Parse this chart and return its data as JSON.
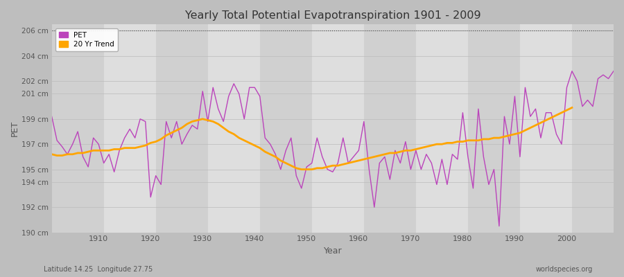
{
  "title": "Yearly Total Potential Evapotranspiration 1901 - 2009",
  "xlabel": "Year",
  "ylabel": "PET",
  "lat_lon_label": "Latitude 14.25  Longitude 27.75",
  "source_label": "worldspecies.org",
  "pet_color": "#BB44BB",
  "trend_color": "#FFA500",
  "fig_bg_color": "#BEBEBE",
  "plot_bg_color": "#D8D8D8",
  "band_colors": [
    "#D0D0D0",
    "#DEDEDE"
  ],
  "ylim": [
    190,
    206.5
  ],
  "yticks": [
    190,
    192,
    194,
    195,
    197,
    199,
    201,
    202,
    204,
    206
  ],
  "ytick_labels": [
    "190 cm",
    "192 cm",
    "194 cm",
    "195 cm",
    "197 cm",
    "199 cm",
    "201 cm",
    "202 cm",
    "204 cm",
    "206 cm"
  ],
  "xticks": [
    1910,
    1920,
    1930,
    1940,
    1950,
    1960,
    1970,
    1980,
    1990,
    2000
  ],
  "years": [
    1901,
    1902,
    1903,
    1904,
    1905,
    1906,
    1907,
    1908,
    1909,
    1910,
    1911,
    1912,
    1913,
    1914,
    1915,
    1916,
    1917,
    1918,
    1919,
    1920,
    1921,
    1922,
    1923,
    1924,
    1925,
    1926,
    1927,
    1928,
    1929,
    1930,
    1931,
    1932,
    1933,
    1934,
    1935,
    1936,
    1937,
    1938,
    1939,
    1940,
    1941,
    1942,
    1943,
    1944,
    1945,
    1946,
    1947,
    1948,
    1949,
    1950,
    1951,
    1952,
    1953,
    1954,
    1955,
    1956,
    1957,
    1958,
    1959,
    1960,
    1961,
    1962,
    1963,
    1964,
    1965,
    1966,
    1967,
    1968,
    1969,
    1970,
    1971,
    1972,
    1973,
    1974,
    1975,
    1976,
    1977,
    1978,
    1979,
    1980,
    1981,
    1982,
    1983,
    1984,
    1985,
    1986,
    1987,
    1988,
    1989,
    1990,
    1991,
    1992,
    1993,
    1994,
    1995,
    1996,
    1997,
    1998,
    1999,
    2000,
    2001,
    2002,
    2003,
    2004,
    2005,
    2006,
    2007,
    2008,
    2009
  ],
  "pet_values": [
    199.2,
    197.3,
    196.8,
    196.2,
    197.0,
    198.0,
    196.0,
    195.2,
    197.5,
    197.0,
    195.5,
    196.2,
    194.8,
    196.5,
    197.5,
    198.2,
    197.5,
    199.0,
    198.8,
    192.8,
    194.5,
    193.8,
    198.8,
    197.5,
    198.8,
    197.0,
    197.8,
    198.5,
    198.2,
    201.2,
    198.8,
    201.5,
    199.8,
    198.8,
    200.8,
    201.8,
    201.0,
    199.0,
    201.5,
    201.5,
    200.8,
    197.5,
    197.0,
    196.2,
    195.0,
    196.5,
    197.5,
    194.5,
    193.5,
    195.2,
    195.5,
    197.5,
    196.0,
    195.0,
    194.8,
    195.5,
    197.5,
    195.5,
    196.0,
    196.5,
    198.8,
    195.0,
    192.0,
    195.5,
    196.0,
    194.2,
    196.5,
    195.5,
    197.2,
    195.0,
    196.5,
    195.0,
    196.2,
    195.5,
    193.8,
    195.8,
    193.8,
    196.2,
    195.8,
    199.5,
    196.0,
    193.5,
    199.8,
    196.0,
    193.8,
    195.0,
    190.5,
    199.2,
    197.0,
    200.8,
    196.0,
    201.5,
    199.2,
    199.8,
    197.5,
    199.5,
    199.5,
    197.8,
    197.0,
    201.5,
    202.8,
    202.0,
    200.0,
    200.5,
    200.0,
    202.2,
    202.5,
    202.2,
    202.8
  ],
  "trend_values": [
    196.2,
    196.1,
    196.1,
    196.2,
    196.2,
    196.3,
    196.3,
    196.4,
    196.5,
    196.5,
    196.5,
    196.5,
    196.6,
    196.6,
    196.7,
    196.7,
    196.7,
    196.8,
    196.9,
    197.1,
    197.2,
    197.4,
    197.7,
    197.9,
    198.1,
    198.3,
    198.6,
    198.8,
    198.9,
    199.0,
    198.9,
    198.8,
    198.6,
    198.3,
    198.0,
    197.8,
    197.5,
    197.3,
    197.1,
    196.9,
    196.7,
    196.4,
    196.2,
    196.0,
    195.7,
    195.5,
    195.3,
    195.1,
    195.0,
    195.0,
    195.0,
    195.1,
    195.1,
    195.2,
    195.3,
    195.3,
    195.4,
    195.5,
    195.6,
    195.7,
    195.8,
    195.9,
    196.0,
    196.1,
    196.2,
    196.3,
    196.3,
    196.4,
    196.5,
    196.5,
    196.6,
    196.7,
    196.8,
    196.9,
    197.0,
    197.0,
    197.1,
    197.1,
    197.2,
    197.2,
    197.3,
    197.3,
    197.3,
    197.4,
    197.4,
    197.5,
    197.5,
    197.6,
    197.7,
    197.8,
    197.9,
    198.1,
    198.3,
    198.5,
    198.7,
    198.9,
    199.1,
    199.3,
    199.5,
    199.7,
    199.9,
    null,
    null,
    null,
    null,
    null,
    null,
    null,
    null
  ]
}
